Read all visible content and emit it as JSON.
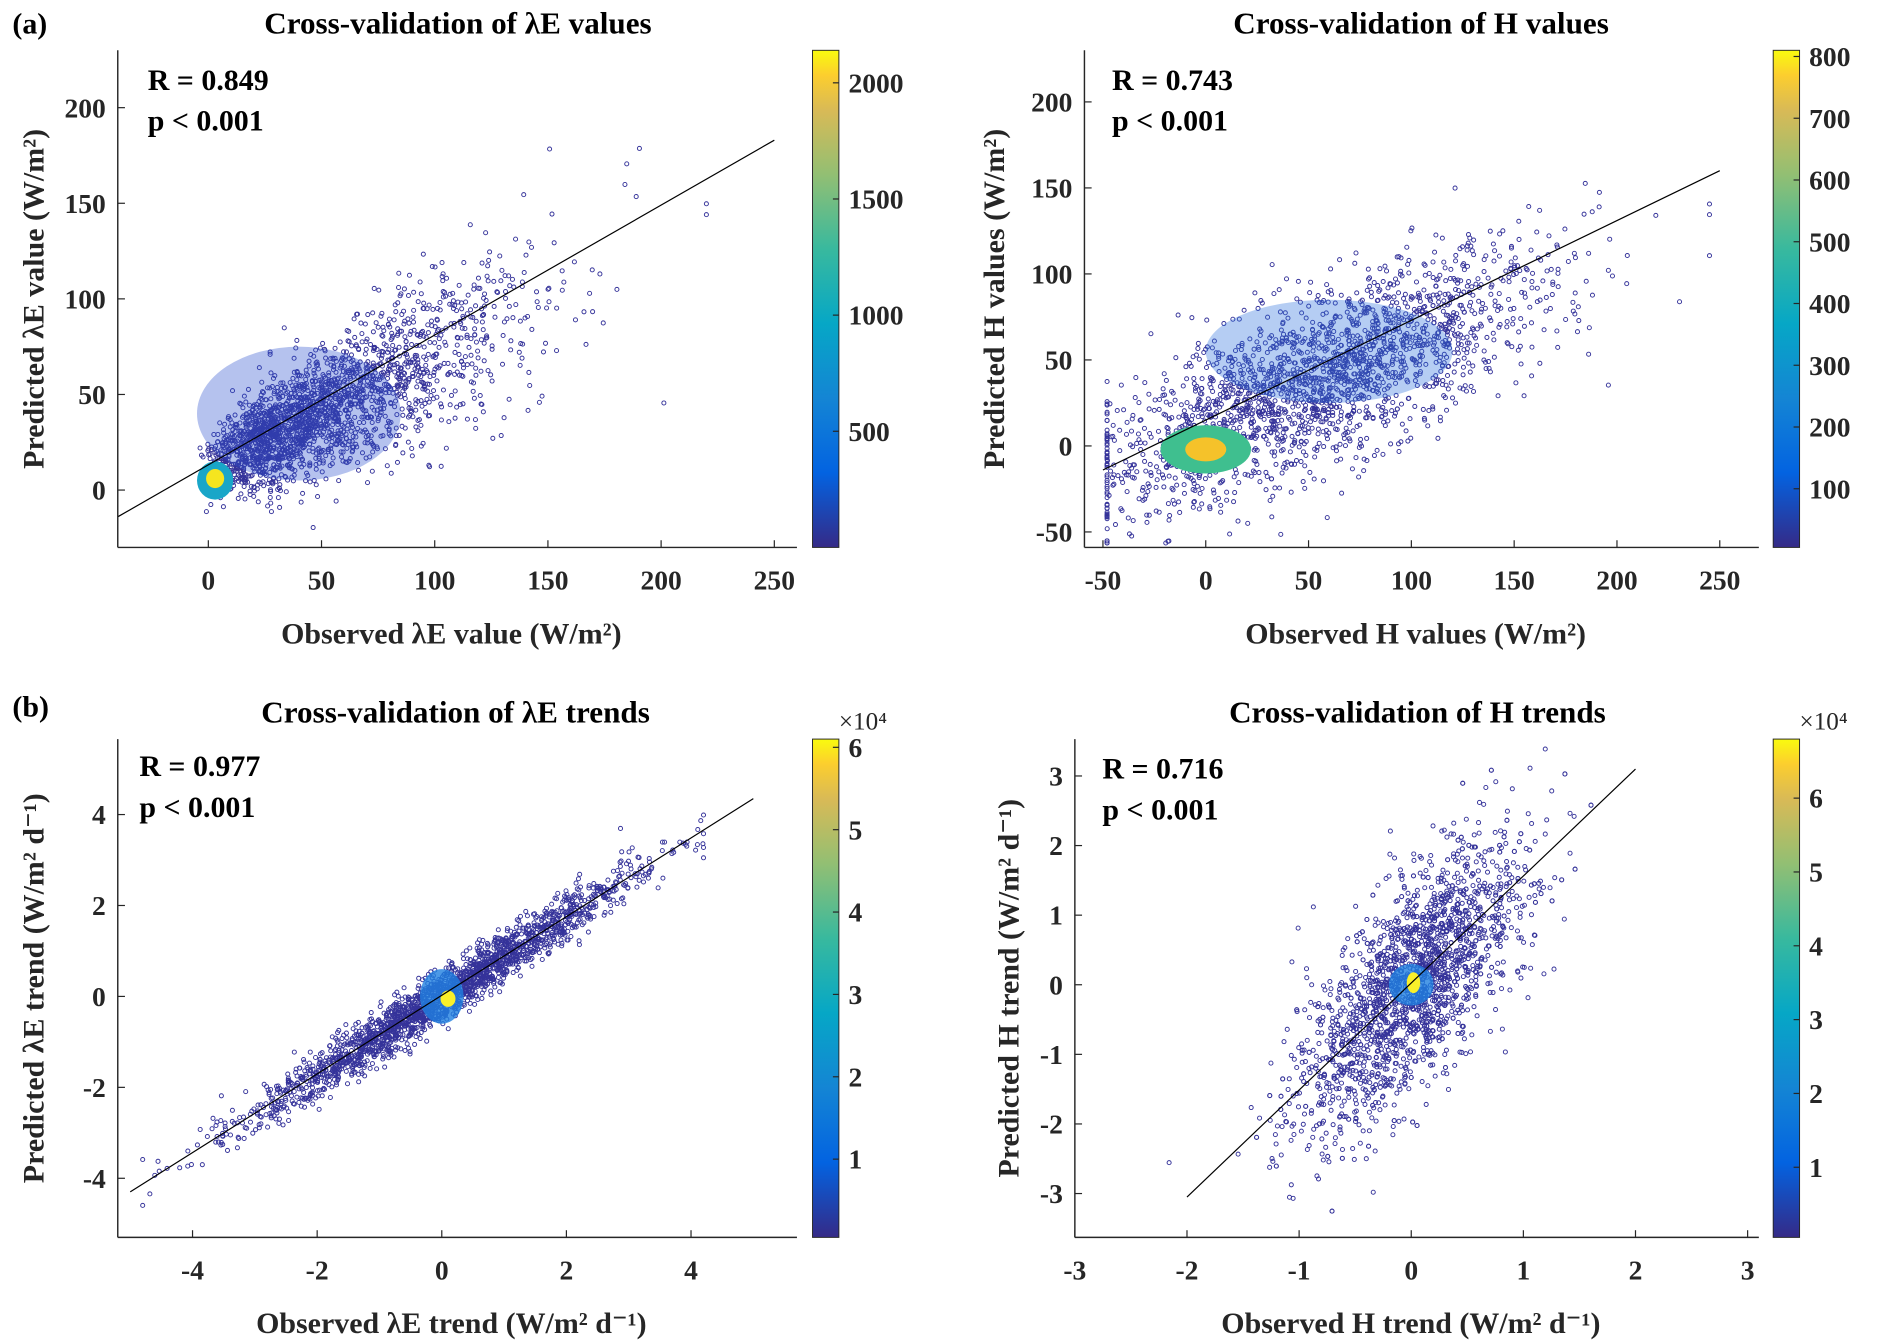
{
  "chart_data": [
    {
      "type": "scatter",
      "panel_label": "(a)",
      "title": "Cross-validation of λE values",
      "xlabel": "Observed λE value (W/m²)",
      "ylabel": "Predicted λE value (W/m²)",
      "xlim": [
        -40,
        260
      ],
      "ylim": [
        -30,
        230
      ],
      "xticks": [
        0,
        50,
        100,
        150,
        200,
        250
      ],
      "yticks": [
        0,
        50,
        100,
        150,
        200
      ],
      "stats": {
        "R": "R = 0.849",
        "p": "p < 0.001"
      },
      "fit_line": {
        "x": [
          -40,
          250
        ],
        "y": [
          -14,
          183
        ]
      },
      "colorbar": {
        "range": [
          0,
          2140
        ],
        "ticks": [
          500,
          1000,
          1500,
          2000
        ],
        "exponent": ""
      },
      "point_color": "#35339a"
    },
    {
      "type": "scatter",
      "panel_label": "",
      "title": "Cross-validation of H values",
      "xlabel": "Observed H values (W/m²)",
      "ylabel": "Predicted H values (W/m²)",
      "xlim": [
        -59,
        269
      ],
      "ylim": [
        -59,
        230
      ],
      "xticks": [
        -50,
        0,
        50,
        100,
        150,
        200,
        250
      ],
      "yticks": [
        -50,
        0,
        50,
        100,
        150,
        200
      ],
      "stats": {
        "R": "R = 0.743",
        "p": "p < 0.001"
      },
      "fit_line": {
        "x": [
          -50,
          250
        ],
        "y": [
          -14,
          160
        ]
      },
      "colorbar": {
        "range": [
          5,
          810
        ],
        "ticks": [
          100,
          200,
          300,
          400,
          500,
          600,
          700,
          800
        ],
        "exponent": ""
      },
      "point_color": "#35339a"
    },
    {
      "type": "scatter",
      "panel_label": "(b)",
      "title": "Cross-validation of λE trends",
      "xlabel": "Observed λE trend (W/m² d⁻¹)",
      "ylabel": "Predicted λE trend (W/m² d⁻¹)",
      "xlim": [
        -5.2,
        5.7
      ],
      "ylim": [
        -5.3,
        5.66
      ],
      "xticks": [
        -4,
        -2,
        0,
        2,
        4
      ],
      "yticks": [
        -4,
        -2,
        0,
        2,
        4
      ],
      "stats": {
        "R": "R = 0.977",
        "p": "p < 0.001"
      },
      "fit_line": {
        "x": [
          -5,
          5
        ],
        "y": [
          -4.3,
          4.35
        ]
      },
      "colorbar": {
        "range": [
          0.05,
          6.1
        ],
        "ticks": [
          1,
          2,
          3,
          4,
          5,
          6
        ],
        "exponent": "×10⁴"
      },
      "point_color": "#35339a"
    },
    {
      "type": "scatter",
      "panel_label": "",
      "title": "Cross-validation of H trends",
      "xlabel": "Observed H trend (W/m² d⁻¹)",
      "ylabel": "Predicted H trend (W/m² d⁻¹)",
      "xlim": [
        -3,
        3.1
      ],
      "ylim": [
        -3.63,
        3.53
      ],
      "xticks": [
        -3,
        -2,
        -1,
        0,
        1,
        2,
        3
      ],
      "yticks": [
        -3,
        -2,
        -1,
        0,
        1,
        2,
        3
      ],
      "stats": {
        "R": "R = 0.716",
        "p": "p < 0.001"
      },
      "fit_line": {
        "x": [
          -2,
          2
        ],
        "y": [
          -3.05,
          3.1
        ]
      },
      "colorbar": {
        "range": [
          0.05,
          6.8
        ],
        "ticks": [
          1,
          2,
          3,
          4,
          5,
          6
        ],
        "exponent": "×10⁴"
      },
      "point_color": "#35339a"
    }
  ]
}
